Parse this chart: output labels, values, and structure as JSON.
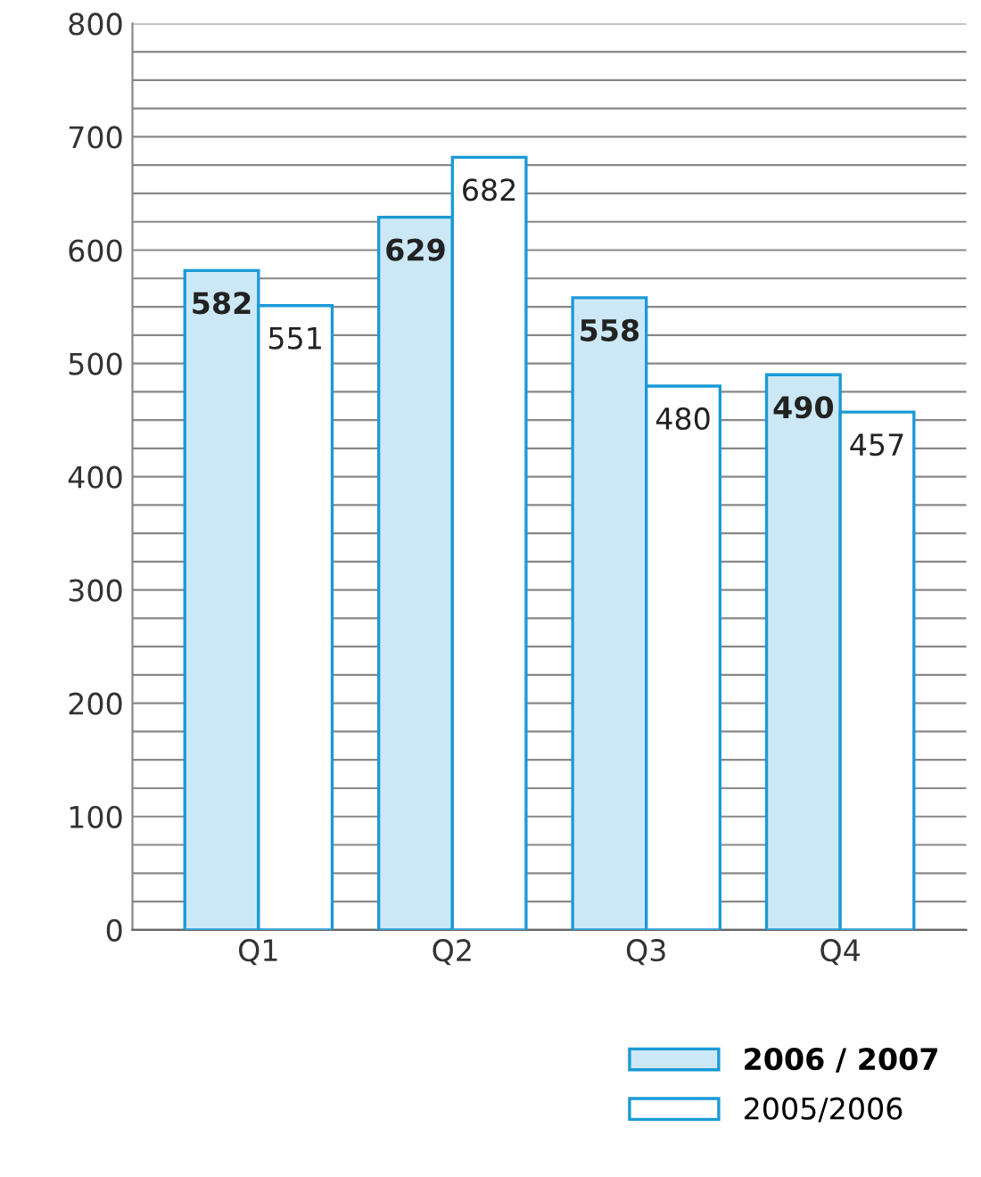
{
  "chart_data": {
    "type": "bar",
    "categories": [
      "Q1",
      "Q2",
      "Q3",
      "Q4"
    ],
    "series": [
      {
        "name": "2006 / 2007",
        "color": "#cce8f6",
        "values": [
          582,
          629,
          558,
          490
        ]
      },
      {
        "name": "2005/2006",
        "color": "#ffffff",
        "values": [
          551,
          682,
          480,
          457
        ]
      }
    ],
    "ylim": [
      0,
      800
    ],
    "yticks": [
      0,
      {
        "value": 25,
        "label": null
      },
      {
        "value": 50,
        "label": null
      },
      {
        "value": 75,
        "label": null
      },
      100,
      {
        "value": 125,
        "label": null
      },
      {
        "value": 150,
        "label": null
      },
      {
        "value": 175,
        "label": null
      },
      200,
      {
        "value": 225,
        "label": null
      },
      {
        "value": 250,
        "label": null
      },
      {
        "value": 275,
        "label": null
      },
      300,
      {
        "value": 325,
        "label": null
      },
      {
        "value": 350,
        "label": null
      },
      {
        "value": 375,
        "label": null
      },
      400,
      {
        "value": 425,
        "label": null
      },
      {
        "value": 450,
        "label": null
      },
      {
        "value": 475,
        "label": null
      },
      500,
      {
        "value": 525,
        "label": null
      },
      {
        "value": 550,
        "label": null
      },
      {
        "value": 575,
        "label": null
      },
      600,
      {
        "value": 625,
        "label": null
      },
      {
        "value": 650,
        "label": null
      },
      {
        "value": 675,
        "label": null
      },
      700,
      {
        "value": 725,
        "label": null
      },
      {
        "value": 750,
        "label": null
      },
      {
        "value": 775,
        "label": null
      },
      800
    ],
    "grid": "y",
    "legend": "bottom right",
    "data_labels": true
  }
}
